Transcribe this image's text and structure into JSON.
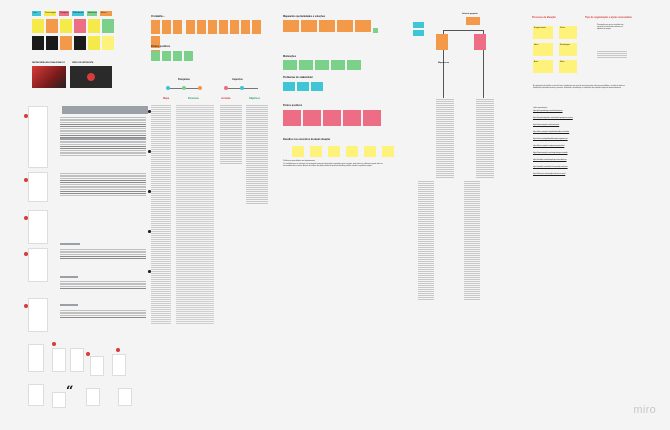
{
  "brand": {
    "watermark": "miro"
  },
  "colors": {
    "board": "#f4f4f4",
    "yellow": "#f5ea4a",
    "orange": "#f39a4a",
    "pink": "#ec6d84",
    "teal": "#3fc6d6",
    "green": "#7bd08a",
    "light_yellow": "#fff27a",
    "dark": "#1a1a1a",
    "red": "#d73b3b",
    "purple": "#b58ad6"
  },
  "sections": {
    "top_left": {
      "chips": [
        "Luis",
        "Personagens",
        "Pesquisa",
        "Referências",
        "Entrevistas",
        "Ideias"
      ],
      "video_labels": [
        "DEFINIR MERCADO FINAL/PÚBLICO",
        "VÍDEO DE ENTREVISTA"
      ]
    },
    "col2": {
      "title_top": "O trabalho...",
      "title_mid": "Pontos positivos",
      "subtitle_left": "Pesquisas",
      "subtitle_right": "Aspectos",
      "col_labels": [
        "Mapa",
        "Personas",
        "Jornada",
        "Objetivos"
      ]
    },
    "col3": {
      "title_top": "Mapeando oportunidades e soluções",
      "title_mid": "Motivações",
      "title_mid2": "Problemas do stakeholder",
      "title_bottom": "Pontos positivos",
      "title_sub": "Desafios nos encontros da atual situação",
      "sub_caption": "Problemas percebidos nos depoimentos",
      "body": "Os resultados que encontramos nas pesquisas trouxeram informações importantes para o projeto, tanto sobre os problemas quanto sobre as necessidades dos usuários. Através da análise dos dados obtidos foi possível identificar padrões e definir as próximas etapas."
    },
    "col4": {
      "title": "Linha de pesquisa",
      "sub": "Mapeamento"
    },
    "col5": {
      "title_left": "Processo de Ideação",
      "title_right": "Tipo de organização e ações necessárias",
      "note_labels": [
        "Engajamento",
        "Fluxo",
        "Ideia",
        "Estratégias",
        "Área",
        "Meta"
      ],
      "side_text": "Priorização para que o conteúdo seja acessível e estruturado conforme os objetivos do projeto.",
      "paragraph": "A organização do trabalho se deu de forma colaborativa por meio de uma ferramenta online que possibilitou a reunião de todas as informações coletadas durante o processo, facilitando a visualização e a definição das próximas etapas do desenvolvimento.",
      "links_title": "Links importantes:",
      "links": [
        "https://pesquisadesign.com.br/referencias",
        "https://projetointegrador.com/material-pesquisa-usuarios",
        "https://www.example.com/entrevistas",
        "https://docs.example.com/planilha-dados-coletados",
        "https://miro.com/app/board/exemplo-organizacao",
        "https://drive.example.com/pasta-projeto-final",
        "https://www.example.com/artigo-design-centrado",
        "https://medium.com/exemplo-processo-ideacao",
        "https://youtube.com/watch?v=exemplo-entrevista",
        "https://behance.net/exemplo-referencia-visual"
      ]
    }
  }
}
